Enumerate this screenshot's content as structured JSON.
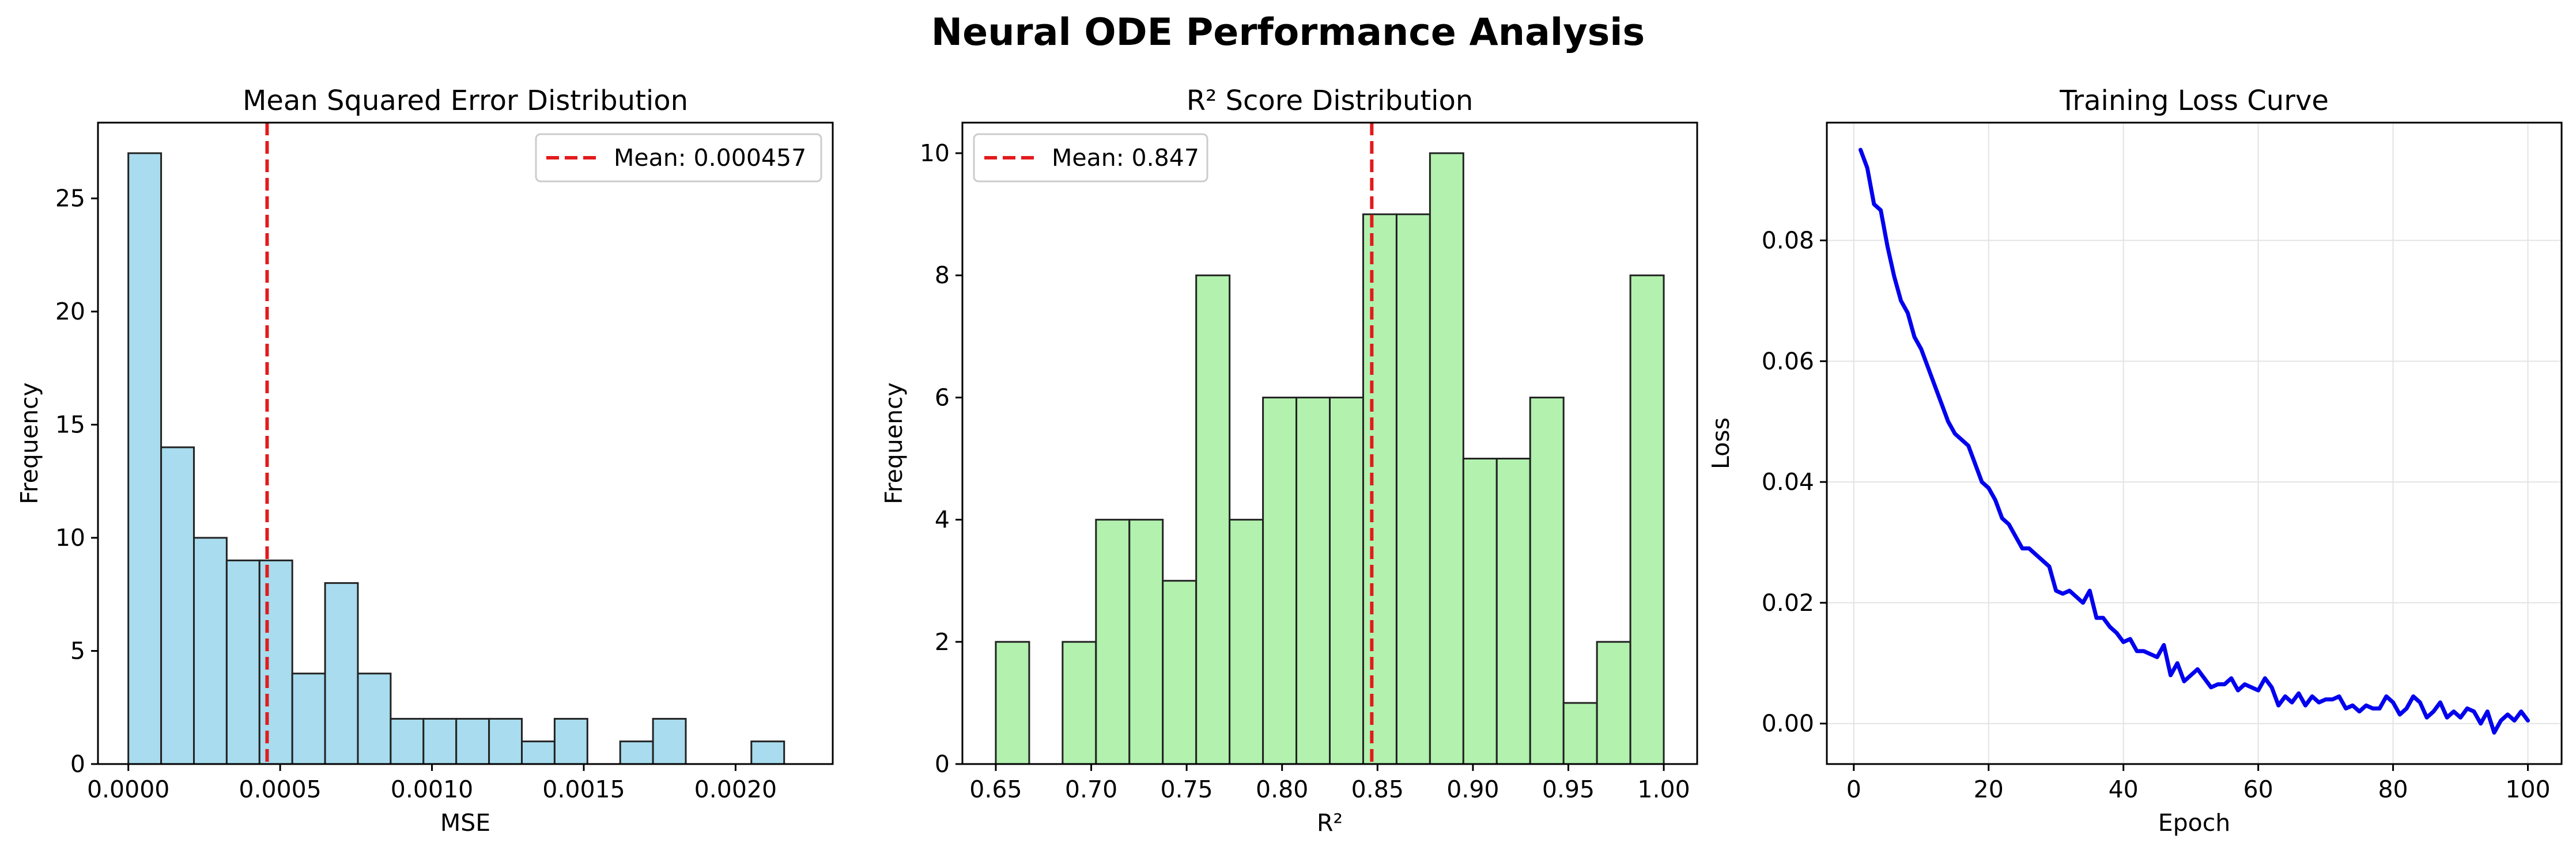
{
  "figure": {
    "title": "Neural ODE Performance Analysis"
  },
  "chart_data": [
    {
      "type": "bar",
      "id": "mse",
      "title": "Mean Squared Error Distribution",
      "xlabel": "MSE",
      "ylabel": "Frequency",
      "xlim": [
        -0.0001,
        0.00232
      ],
      "ylim": [
        0,
        28.35
      ],
      "xticks": [
        0.0,
        0.0005,
        0.001,
        0.0015,
        0.002
      ],
      "xtick_labels": [
        "0.0000",
        "0.0005",
        "0.0010",
        "0.0015",
        "0.0020"
      ],
      "yticks": [
        0,
        5,
        10,
        15,
        20,
        25
      ],
      "ytick_labels": [
        "0",
        "5",
        "10",
        "15",
        "20",
        "25"
      ],
      "bin_start": 0.0,
      "bin_width": 0.000108,
      "values": [
        27,
        14,
        10,
        9,
        9,
        4,
        8,
        4,
        2,
        2,
        2,
        2,
        1,
        2,
        0,
        1,
        2,
        0,
        0,
        1
      ],
      "bar_color": "#a8dcee",
      "mean": 0.000457,
      "legend": [
        "Mean: 0.000457"
      ],
      "legend_loc": "upper right",
      "grid": false
    },
    {
      "type": "bar",
      "id": "r2",
      "title": "R² Score Distribution",
      "xlabel": "R²",
      "ylabel": "Frequency",
      "xlim": [
        0.6325,
        1.0175
      ],
      "ylim": [
        0,
        10.5
      ],
      "xticks": [
        0.65,
        0.7,
        0.75,
        0.8,
        0.85,
        0.9,
        0.95,
        1.0
      ],
      "xtick_labels": [
        "0.65",
        "0.70",
        "0.75",
        "0.80",
        "0.85",
        "0.90",
        "0.95",
        "1.00"
      ],
      "yticks": [
        0,
        2,
        4,
        6,
        8,
        10
      ],
      "ytick_labels": [
        "0",
        "2",
        "4",
        "6",
        "8",
        "10"
      ],
      "bin_start": 0.65,
      "bin_width": 0.0175,
      "values": [
        2,
        0,
        2,
        4,
        4,
        3,
        8,
        4,
        6,
        6,
        6,
        9,
        9,
        10,
        5,
        5,
        6,
        1,
        2,
        8
      ],
      "bar_color": "#b2f1ae",
      "mean": 0.847,
      "legend": [
        "Mean: 0.847"
      ],
      "legend_loc": "upper left",
      "grid": false
    },
    {
      "type": "line",
      "id": "loss",
      "title": "Training Loss Curve",
      "xlabel": "Epoch",
      "ylabel": "Loss",
      "xlim": [
        -4,
        105
      ],
      "ylim": [
        -0.0067,
        0.0995
      ],
      "xticks": [
        0,
        20,
        40,
        60,
        80,
        100
      ],
      "xtick_labels": [
        "0",
        "20",
        "40",
        "60",
        "80",
        "100"
      ],
      "yticks": [
        0.0,
        0.02,
        0.04,
        0.06,
        0.08
      ],
      "ytick_labels": [
        "0.00",
        "0.02",
        "0.04",
        "0.06",
        "0.08"
      ],
      "series": [
        {
          "color": "#0000ee",
          "x": [
            1,
            2,
            3,
            4,
            5,
            6,
            7,
            8,
            9,
            10,
            11,
            12,
            13,
            14,
            15,
            16,
            17,
            18,
            19,
            20,
            21,
            22,
            23,
            24,
            25,
            26,
            27,
            28,
            29,
            30,
            31,
            32,
            33,
            34,
            35,
            36,
            37,
            38,
            39,
            40,
            41,
            42,
            43,
            44,
            45,
            46,
            47,
            48,
            49,
            50,
            51,
            52,
            53,
            54,
            55,
            56,
            57,
            58,
            59,
            60,
            61,
            62,
            63,
            64,
            65,
            66,
            67,
            68,
            69,
            70,
            71,
            72,
            73,
            74,
            75,
            76,
            77,
            78,
            79,
            80,
            81,
            82,
            83,
            84,
            85,
            86,
            87,
            88,
            89,
            90,
            91,
            92,
            93,
            94,
            95,
            96,
            97,
            98,
            99,
            100
          ],
          "y": [
            0.095,
            0.092,
            0.086,
            0.085,
            0.079,
            0.074,
            0.07,
            0.068,
            0.064,
            0.062,
            0.059,
            0.056,
            0.053,
            0.05,
            0.048,
            0.047,
            0.046,
            0.043,
            0.04,
            0.039,
            0.037,
            0.034,
            0.033,
            0.031,
            0.029,
            0.029,
            0.028,
            0.027,
            0.026,
            0.022,
            0.0215,
            0.022,
            0.021,
            0.02,
            0.022,
            0.0175,
            0.0175,
            0.016,
            0.015,
            0.0135,
            0.014,
            0.012,
            0.012,
            0.0115,
            0.011,
            0.013,
            0.008,
            0.01,
            0.007,
            0.008,
            0.009,
            0.0075,
            0.006,
            0.0065,
            0.0065,
            0.0075,
            0.0055,
            0.0065,
            0.006,
            0.0055,
            0.0075,
            0.006,
            0.003,
            0.0045,
            0.0035,
            0.005,
            0.003,
            0.0045,
            0.0035,
            0.004,
            0.004,
            0.0045,
            0.0025,
            0.003,
            0.002,
            0.003,
            0.0025,
            0.0025,
            0.0045,
            0.0035,
            0.0015,
            0.0025,
            0.0045,
            0.0035,
            0.001,
            0.002,
            0.0035,
            0.001,
            0.002,
            0.001,
            0.0025,
            0.002,
            0.0,
            0.002,
            -0.0015,
            0.0005,
            0.0015,
            0.0005,
            0.002,
            0.0005
          ]
        }
      ],
      "grid": true
    }
  ]
}
